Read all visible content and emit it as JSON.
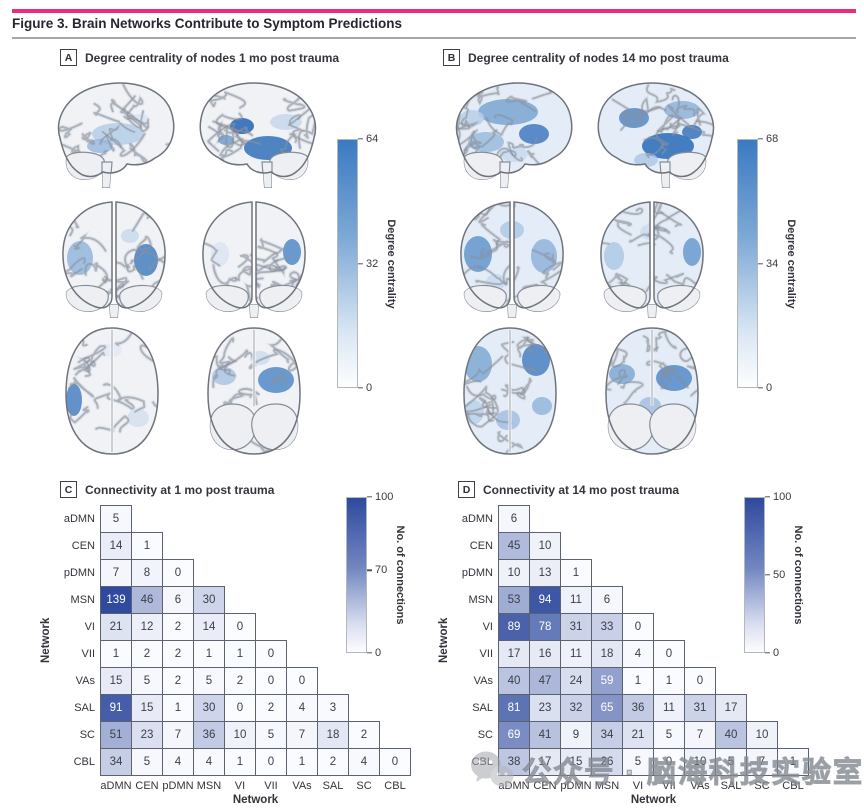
{
  "figure_title": "Figure 3. Brain Networks Contribute to Symptom Predictions",
  "colors": {
    "accent_pink": "#ee2a7b",
    "heatmap_low": "#fbfcff",
    "heatmap_high": "#2f4a9e",
    "brain_colorbar_high": "#3a7ac1",
    "cell_border": "#5b6372",
    "cell_text_dark": "#3c4049",
    "cell_text_light": "#ffffff"
  },
  "networks": [
    "aDMN",
    "CEN",
    "pDMN",
    "MSN",
    "VI",
    "VII",
    "VAs",
    "SAL",
    "SC",
    "CBL"
  ],
  "panels": {
    "a": {
      "letter": "A",
      "title": "Degree centrality of nodes 1 mo post trauma",
      "colorbar": {
        "label": "Degree centrality",
        "ticks": [
          {
            "label": "64",
            "pos": 0
          },
          {
            "label": "32",
            "pos": 0.5
          },
          {
            "label": "0",
            "pos": 1
          }
        ]
      }
    },
    "b": {
      "letter": "B",
      "title": "Degree centrality of nodes 14 mo post trauma",
      "colorbar": {
        "label": "Degree centrality",
        "ticks": [
          {
            "label": "68",
            "pos": 0
          },
          {
            "label": "34",
            "pos": 0.5
          },
          {
            "label": "0",
            "pos": 1
          }
        ]
      }
    },
    "c": {
      "letter": "C",
      "title": "Connectivity at 1 mo post trauma",
      "xlabel": "Network",
      "ylabel": "Network",
      "colorbar": {
        "label": "No. of connections",
        "ticks": [
          {
            "label": "100",
            "pos": 0
          },
          {
            "label": "70",
            "pos": 0.47
          },
          {
            "label": "0",
            "pos": 1
          }
        ]
      }
    },
    "d": {
      "letter": "D",
      "title": "Connectivity at 14 mo post trauma",
      "xlabel": "Network",
      "ylabel": "Network",
      "colorbar": {
        "label": "No. of connections",
        "ticks": [
          {
            "label": "100",
            "pos": 0
          },
          {
            "label": "50",
            "pos": 0.5
          },
          {
            "label": "0",
            "pos": 1
          }
        ]
      }
    }
  },
  "chart_data": [
    {
      "type": "heatmap",
      "subtype": "brain-surface-map",
      "panel": "A",
      "title": "Degree centrality of nodes 1 mo post trauma",
      "colorbar_label": "Degree centrality",
      "color_range": [
        0,
        64
      ],
      "colorbar_ticks": [
        64,
        32,
        0
      ],
      "views": [
        "lateral-left",
        "lateral-right",
        "frontal",
        "posterior",
        "axial-dorsal",
        "axial-ventral"
      ]
    },
    {
      "type": "heatmap",
      "subtype": "brain-surface-map",
      "panel": "B",
      "title": "Degree centrality of nodes 14 mo post trauma",
      "colorbar_label": "Degree centrality",
      "color_range": [
        0,
        68
      ],
      "colorbar_ticks": [
        68,
        34,
        0
      ],
      "views": [
        "lateral-left",
        "lateral-right",
        "frontal",
        "posterior",
        "axial-dorsal",
        "axial-ventral"
      ]
    },
    {
      "type": "heatmap",
      "panel": "C",
      "title": "Connectivity at 1 mo post trauma",
      "xlabel": "Network",
      "ylabel": "Network",
      "categories": [
        "aDMN",
        "CEN",
        "pDMN",
        "MSN",
        "VI",
        "VII",
        "VAs",
        "SAL",
        "SC",
        "CBL"
      ],
      "colorbar_label": "No. of connections",
      "colorbar_ticks": [
        100,
        70,
        0
      ],
      "color_range": [
        0,
        100
      ],
      "rows": [
        [
          5
        ],
        [
          14,
          1
        ],
        [
          7,
          8,
          0
        ],
        [
          139,
          46,
          6,
          30
        ],
        [
          21,
          12,
          2,
          14,
          0
        ],
        [
          1,
          2,
          2,
          1,
          1,
          0
        ],
        [
          15,
          5,
          2,
          5,
          2,
          0,
          0
        ],
        [
          91,
          15,
          1,
          30,
          0,
          2,
          4,
          3
        ],
        [
          51,
          23,
          7,
          36,
          10,
          5,
          7,
          18,
          2
        ],
        [
          34,
          5,
          4,
          4,
          1,
          0,
          1,
          2,
          4,
          0
        ]
      ]
    },
    {
      "type": "heatmap",
      "panel": "D",
      "title": "Connectivity at 14 mo post trauma",
      "xlabel": "Network",
      "ylabel": "Network",
      "categories": [
        "aDMN",
        "CEN",
        "pDMN",
        "MSN",
        "VI",
        "VII",
        "VAs",
        "SAL",
        "SC",
        "CBL"
      ],
      "colorbar_label": "No. of connections",
      "colorbar_ticks": [
        100,
        50,
        0
      ],
      "color_range": [
        0,
        100
      ],
      "rows": [
        [
          6
        ],
        [
          45,
          10
        ],
        [
          10,
          13,
          1
        ],
        [
          53,
          94,
          11,
          6
        ],
        [
          89,
          78,
          31,
          33,
          0
        ],
        [
          17,
          16,
          11,
          18,
          4,
          0
        ],
        [
          40,
          47,
          24,
          59,
          1,
          1,
          0
        ],
        [
          81,
          23,
          32,
          65,
          36,
          11,
          31,
          17
        ],
        [
          69,
          41,
          9,
          34,
          21,
          5,
          7,
          40,
          10
        ],
        [
          38,
          17,
          15,
          26,
          5,
          0,
          10,
          5,
          7,
          1
        ]
      ]
    }
  ],
  "watermark": {
    "icon": "wechat-icon",
    "text": "公众号 · 脑海科技实验室"
  }
}
